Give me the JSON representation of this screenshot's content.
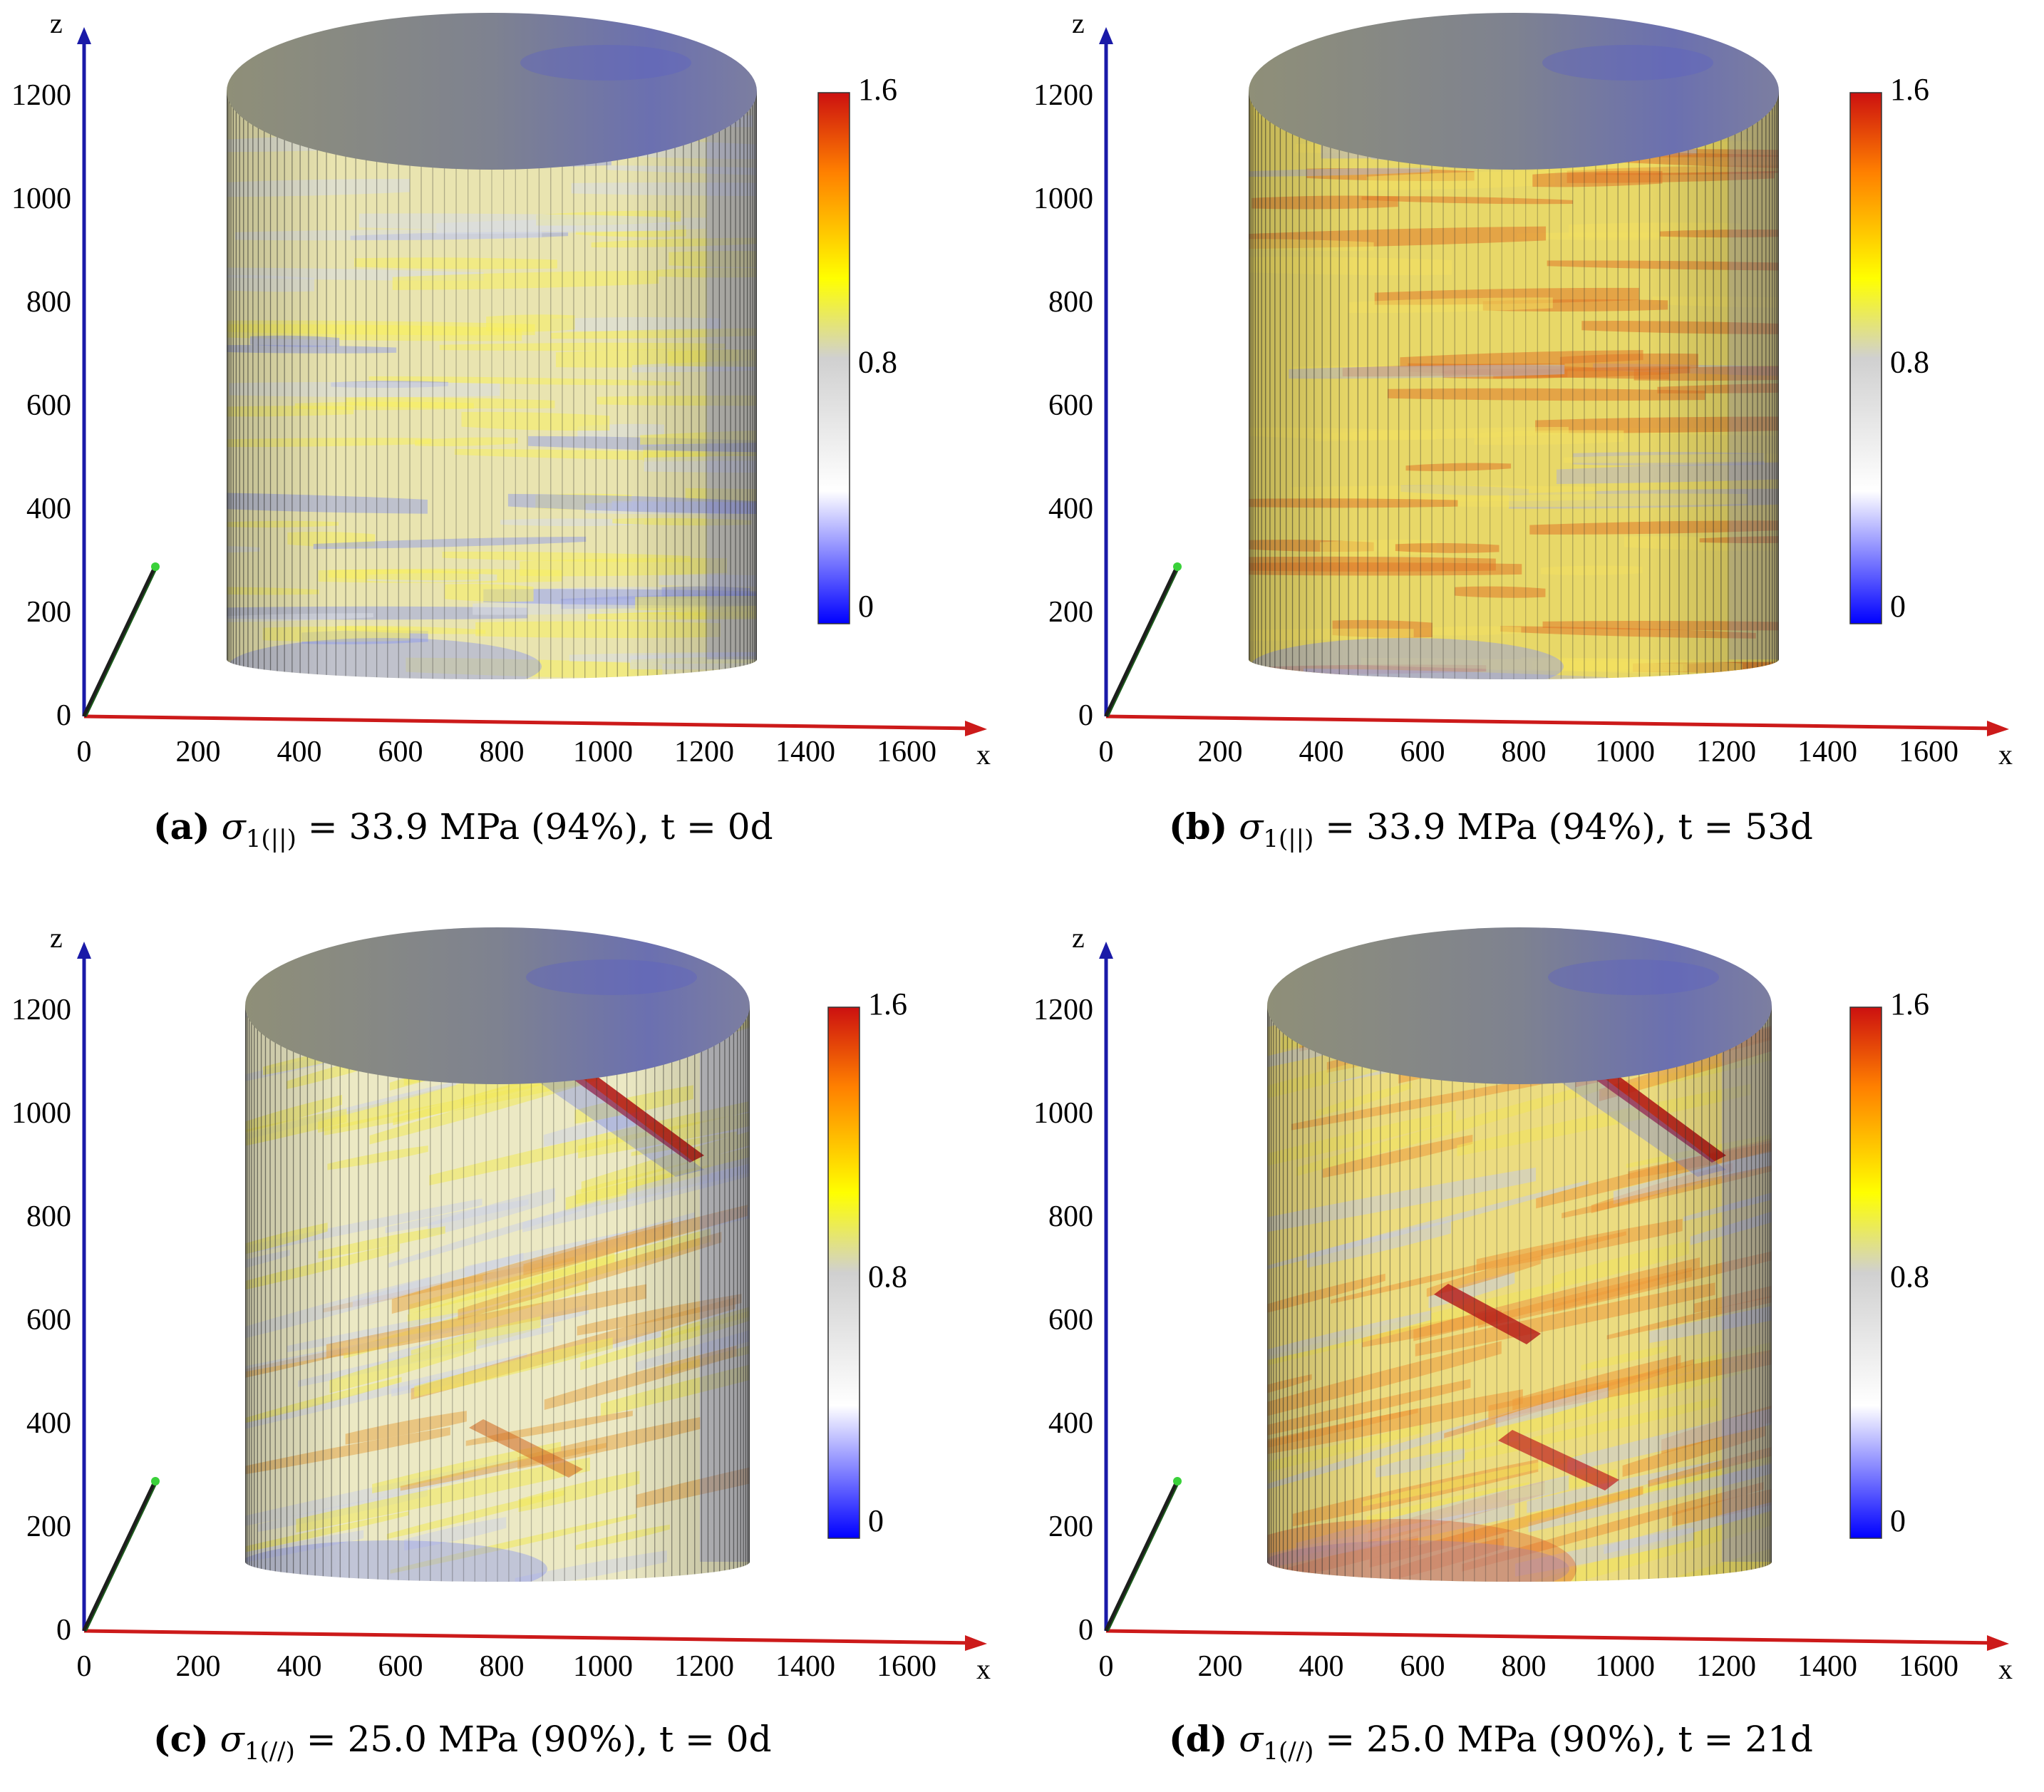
{
  "figure": {
    "colorbar": {
      "max": "1.6",
      "mid": "0.8",
      "min": "0",
      "stops": [
        "#0000ff",
        "#ffffff",
        "#d0d0d0",
        "#ffff00",
        "#ff8000",
        "#cc1010"
      ]
    },
    "axes": {
      "z_label": "z",
      "x_label": "x",
      "z_ticks": [
        "0",
        "200",
        "400",
        "600",
        "800",
        "1000",
        "1200"
      ],
      "x_ticks": [
        "0",
        "200",
        "400",
        "600",
        "800",
        "1000",
        "1200",
        "1400",
        "1600"
      ],
      "colors": {
        "z": "#1a1aa8",
        "x": "#cc1a1a",
        "y": "#1a5a1a"
      }
    },
    "panels": [
      {
        "id": "a",
        "letter": "(a)",
        "sub": "1(||)",
        "rest": " = 33.9 MPa (94%), t = 0d"
      },
      {
        "id": "b",
        "letter": "(b)",
        "sub": "1(||)",
        "rest": " = 33.9 MPa (94%), t = 53d"
      },
      {
        "id": "c",
        "letter": "(c)",
        "sub": "1(//)",
        "rest": " = 25.0 MPa (90%), t = 0d"
      },
      {
        "id": "d",
        "letter": "(d)",
        "sub": "1(//)",
        "rest": " = 25.0 MPa (90%), t = 21d"
      }
    ]
  }
}
